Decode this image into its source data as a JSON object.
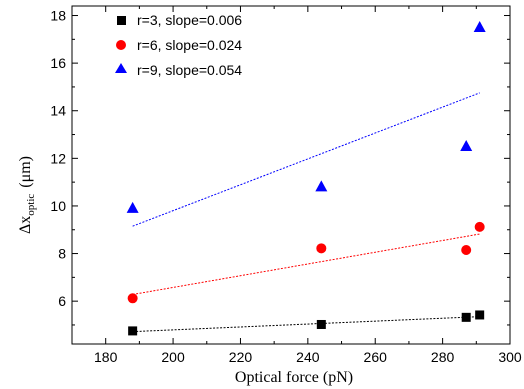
{
  "chart_data": {
    "type": "scatter",
    "xlabel": "Optical force (pN)",
    "ylabel_main": "Δx",
    "ylabel_sub": "optic",
    "ylabel_unit": "(μm)",
    "xlim": [
      170,
      300
    ],
    "ylim": [
      4.2,
      18.4
    ],
    "x_ticks": [
      180,
      200,
      220,
      240,
      260,
      280,
      300
    ],
    "y_ticks": [
      6,
      8,
      10,
      12,
      14,
      16,
      18
    ],
    "legend_position": "top-left",
    "series": [
      {
        "name": "r=3, slope=0.006",
        "marker": "square",
        "color": "#000000",
        "x": [
          188,
          244,
          287,
          291
        ],
        "y": [
          4.75,
          5.02,
          5.32,
          5.42
        ],
        "fit": [
          [
            188,
            4.72
          ],
          [
            291,
            5.35
          ]
        ]
      },
      {
        "name": "r=6, slope=0.024",
        "marker": "circle",
        "color": "#ff0000",
        "x": [
          188,
          244,
          287,
          291
        ],
        "y": [
          6.12,
          8.22,
          8.15,
          9.12
        ],
        "fit": [
          [
            188,
            6.28
          ],
          [
            291,
            8.82
          ]
        ]
      },
      {
        "name": "r=9, slope=0.054",
        "marker": "triangle",
        "color": "#0000ff",
        "x": [
          188,
          244,
          287,
          291
        ],
        "y": [
          9.92,
          10.82,
          12.52,
          17.52
        ],
        "fit": [
          [
            188,
            9.15
          ],
          [
            291,
            14.75
          ]
        ]
      }
    ]
  }
}
